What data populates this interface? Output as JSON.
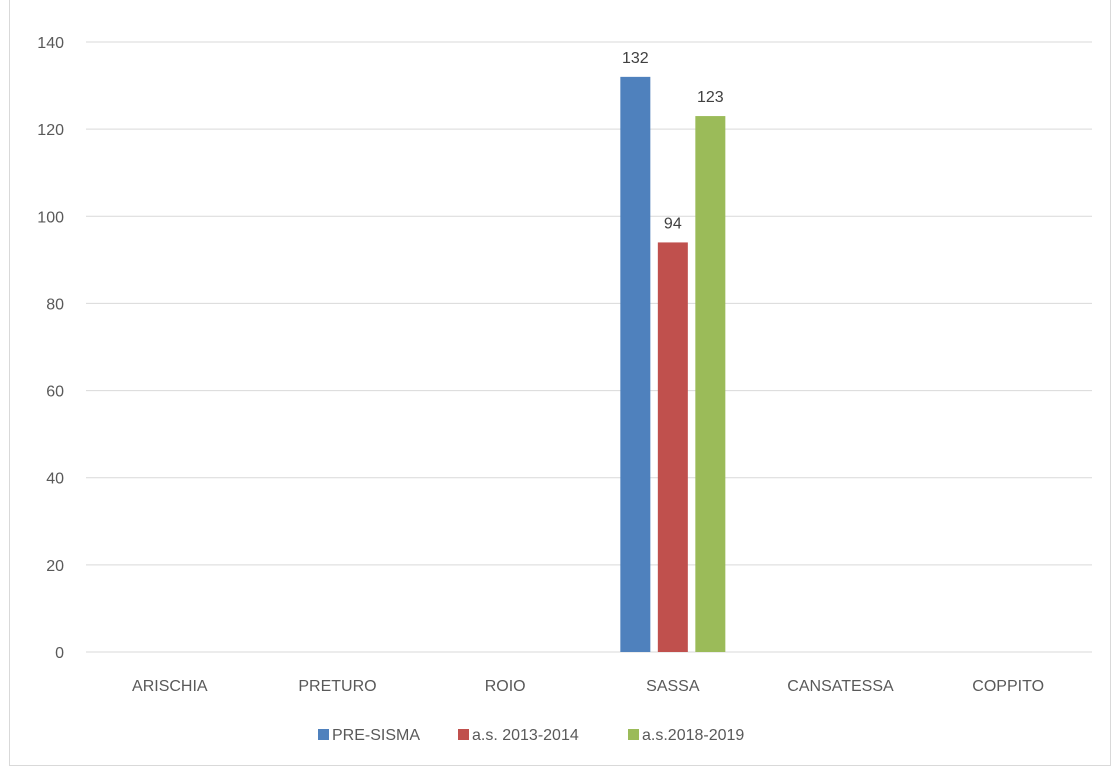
{
  "chart_data": {
    "type": "bar",
    "title": "",
    "xlabel": "",
    "ylabel": "",
    "categories": [
      "ARISCHIA",
      "PRETURO",
      "ROIO",
      "SASSA",
      "CANSATESSA",
      "COPPITO"
    ],
    "series": [
      {
        "name": "PRE-SISMA",
        "color": "#4f81bd",
        "values": [
          null,
          null,
          null,
          132,
          null,
          null
        ]
      },
      {
        "name": "a.s. 2013-2014",
        "color": "#c0504d",
        "values": [
          null,
          null,
          null,
          94,
          null,
          null
        ]
      },
      {
        "name": "a.s.2018-2019",
        "color": "#9bbb59",
        "values": [
          null,
          null,
          null,
          123,
          null,
          null
        ]
      }
    ],
    "ylim": [
      0,
      140
    ],
    "yticks": [
      0,
      20,
      40,
      60,
      80,
      100,
      120,
      140
    ],
    "data_labels": true,
    "grid": "horizontal",
    "legend_position": "bottom"
  }
}
